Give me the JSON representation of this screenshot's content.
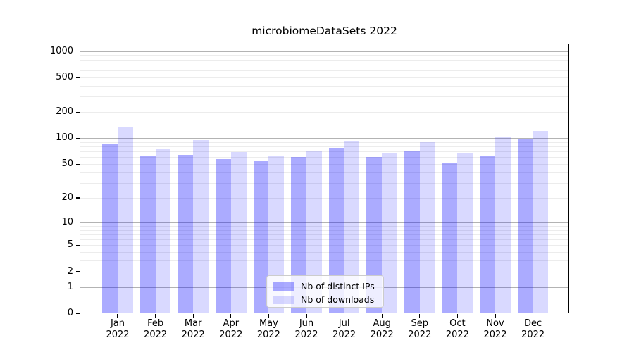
{
  "chart_data": {
    "type": "bar",
    "title": "microbiomeDataSets 2022",
    "categories": [
      "Jan",
      "Feb",
      "Mar",
      "Apr",
      "May",
      "Jun",
      "Jul",
      "Aug",
      "Sep",
      "Oct",
      "Nov",
      "Dec"
    ],
    "year": "2022",
    "series": [
      {
        "name": "Nb of distinct IPs",
        "color": "rgba(0,0,255,0.33)",
        "color_hex": "#a8a8fa",
        "values": [
          86,
          62,
          64,
          57,
          55,
          61,
          78,
          61,
          71,
          52,
          63,
          96
        ]
      },
      {
        "name": "Nb of downloads",
        "color": "rgba(0,0,255,0.15)",
        "color_hex": "#d9d9fb",
        "values": [
          135,
          75,
          95,
          69,
          62,
          70,
          94,
          67,
          92,
          66,
          104,
          121
        ]
      }
    ],
    "yticks": [
      0,
      1,
      2,
      5,
      10,
      20,
      50,
      100,
      200,
      500,
      1000
    ],
    "scale": "log1p",
    "ylim": [
      0,
      1220
    ],
    "xlabel": "",
    "ylabel": "",
    "grid": "both",
    "legend_position": "lower center",
    "axis_color": "#000000",
    "major_grid_color": "#b3b3b3",
    "minor_grid_color": "#ececec",
    "background_color": "#ffffff"
  }
}
